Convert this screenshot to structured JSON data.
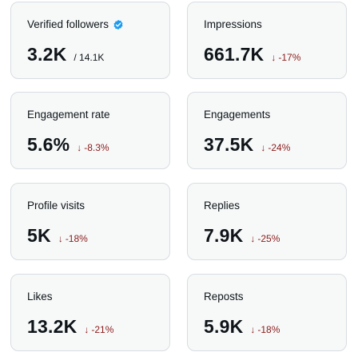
{
  "metrics": [
    {
      "label": "Verified followers",
      "value": "3.2K",
      "total": "/ 14.1K",
      "verified_badge": true,
      "icon": "verified-badge-icon"
    },
    {
      "label": "Impressions",
      "value": "661.7K",
      "change": "-17%",
      "trend": "down",
      "icon": "arrow-down-icon"
    },
    {
      "label": "Engagement rate",
      "value": "5.6%",
      "change": "-8.3%",
      "trend": "down",
      "icon": "arrow-down-icon"
    },
    {
      "label": "Engagements",
      "value": "37.5K",
      "change": "-24%",
      "trend": "down",
      "icon": "arrow-down-icon"
    },
    {
      "label": "Profile visits",
      "value": "5K",
      "change": "-18%",
      "trend": "down",
      "icon": "arrow-down-icon"
    },
    {
      "label": "Replies",
      "value": "7.9K",
      "change": "-25%",
      "trend": "down",
      "icon": "arrow-down-icon"
    },
    {
      "label": "Likes",
      "value": "13.2K",
      "change": "-21%",
      "trend": "down",
      "icon": "arrow-down-icon"
    },
    {
      "label": "Reposts",
      "value": "5.9K",
      "change": "-18%",
      "trend": "down",
      "icon": "arrow-down-icon"
    }
  ],
  "colors": {
    "card_background": "#f7f9f9",
    "card_border": "#d8dde1",
    "text": "#0f1419",
    "negative_change": "#8b1a1a",
    "verified_badge": "#1d9bf0"
  }
}
